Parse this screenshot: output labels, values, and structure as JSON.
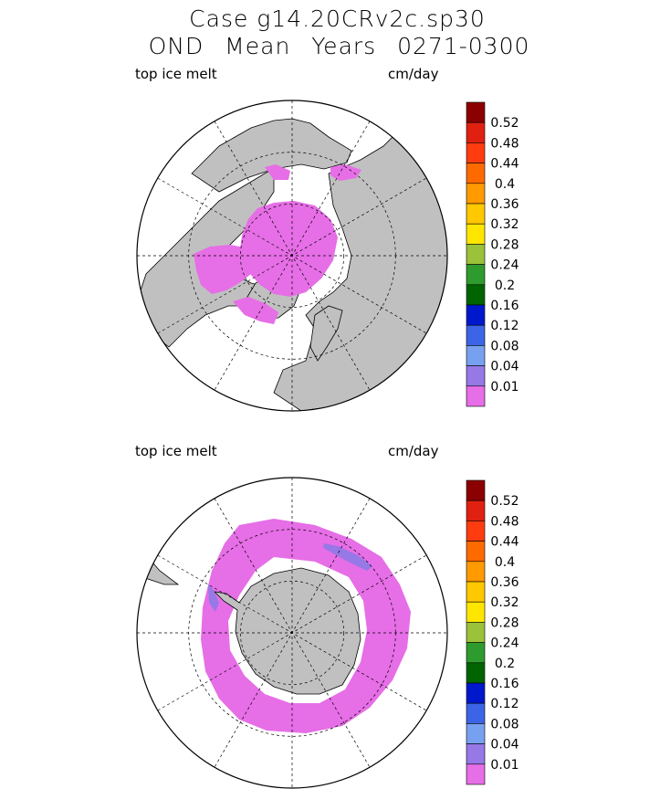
{
  "title_line1": "Case g14.20CRv2c.sp30",
  "title_line2": "OND Mean   Years 0271-0300",
  "chart_data": [
    {
      "type": "polar-map",
      "hemisphere": "north",
      "variable_label": "top ice melt",
      "units": "cm/day",
      "dominant_value_class": "0.01",
      "colorbar": {
        "levels": [
          "0.52",
          "0.48",
          "0.44",
          "0.4",
          "0.36",
          "0.32",
          "0.28",
          "0.24",
          "0.2",
          "0.16",
          "0.12",
          "0.08",
          "0.04",
          "0.01"
        ],
        "colors": [
          "#8b0000",
          "#e02010",
          "#ff3c10",
          "#ff6a00",
          "#ff9a00",
          "#ffc800",
          "#ffe600",
          "#9ac23a",
          "#2e9b2e",
          "#006400",
          "#0018cc",
          "#3c64e6",
          "#78a0f0",
          "#9678e6",
          "#e66ee6"
        ]
      }
    },
    {
      "type": "polar-map",
      "hemisphere": "south",
      "variable_label": "top ice melt",
      "units": "cm/day",
      "dominant_value_class": "0.01",
      "secondary_value_class": "0.04",
      "colorbar": {
        "levels": [
          "0.52",
          "0.48",
          "0.44",
          "0.4",
          "0.36",
          "0.32",
          "0.28",
          "0.24",
          "0.2",
          "0.16",
          "0.12",
          "0.08",
          "0.04",
          "0.01"
        ],
        "colors": [
          "#8b0000",
          "#e02010",
          "#ff3c10",
          "#ff6a00",
          "#ff9a00",
          "#ffc800",
          "#ffe600",
          "#9ac23a",
          "#2e9b2e",
          "#006400",
          "#0018cc",
          "#3c64e6",
          "#78a0f0",
          "#9678e6",
          "#e66ee6"
        ]
      }
    }
  ]
}
